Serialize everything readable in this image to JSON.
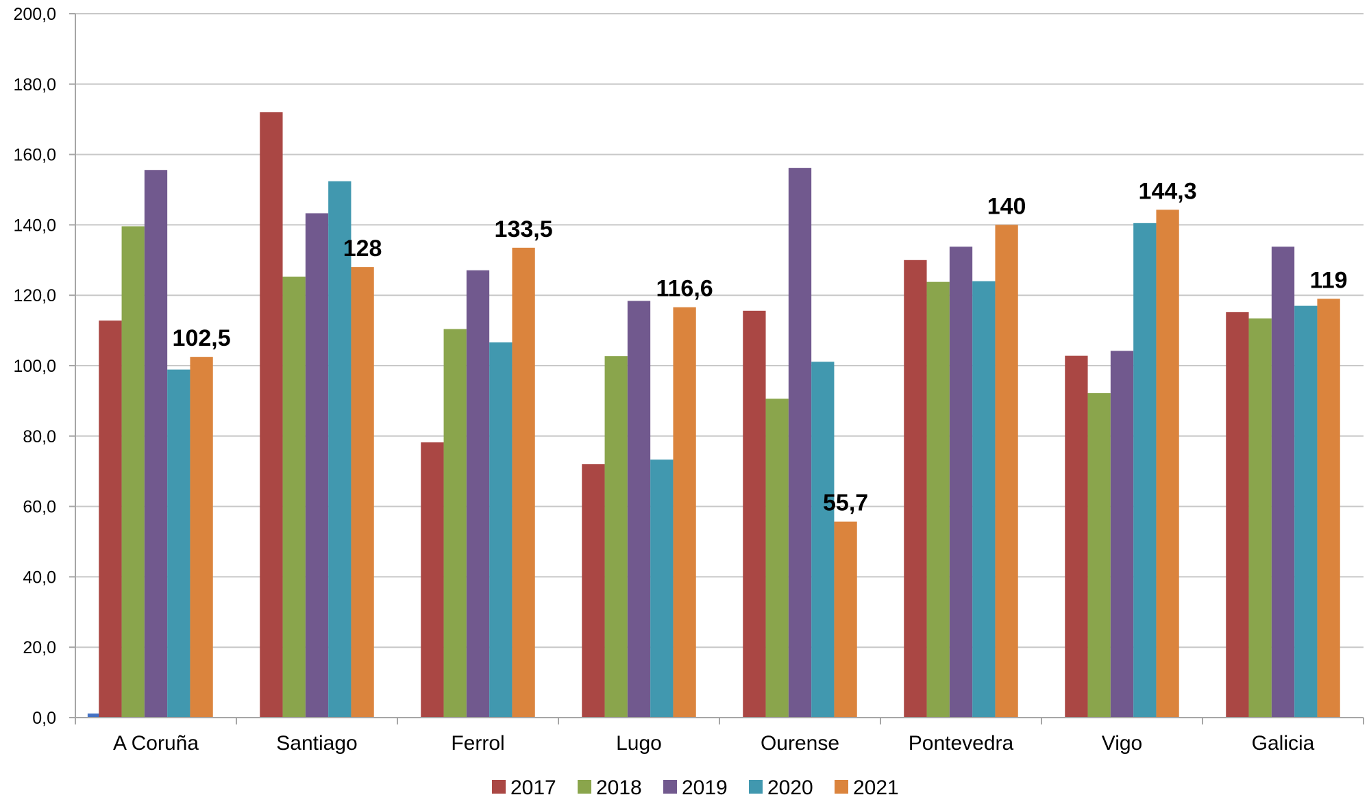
{
  "chart_data": {
    "type": "bar",
    "title": "",
    "xlabel": "",
    "ylabel": "",
    "ylim": [
      0,
      200
    ],
    "ytick_labels": [
      "0,0",
      "20,0",
      "40,0",
      "60,0",
      "80,0",
      "100,0",
      "120,0",
      "140,0",
      "160,0",
      "180,0",
      "200,0"
    ],
    "grid": true,
    "legend_position": "bottom",
    "categories": [
      "A Coruña",
      "Santiago",
      "Ferrol",
      "Lugo",
      "Ourense",
      "Pontevedra",
      "Vigo",
      "Galicia"
    ],
    "extra_bar": {
      "category": "A Coruña",
      "value": 1.2,
      "color": "#4472c4"
    },
    "series": [
      {
        "name": "2017",
        "color": "#aa4744",
        "values": [
          112.8,
          172.0,
          78.2,
          72.0,
          115.6,
          130.0,
          102.8,
          115.2
        ]
      },
      {
        "name": "2018",
        "color": "#8aa54c",
        "values": [
          139.6,
          125.3,
          110.4,
          102.7,
          90.6,
          123.8,
          92.2,
          113.4
        ]
      },
      {
        "name": "2019",
        "color": "#71598e",
        "values": [
          155.6,
          143.3,
          127.1,
          118.4,
          156.2,
          133.8,
          104.2,
          133.8
        ]
      },
      {
        "name": "2020",
        "color": "#4198af",
        "values": [
          98.9,
          152.4,
          106.6,
          73.3,
          101.1,
          124.0,
          140.5,
          117.0
        ]
      },
      {
        "name": "2021",
        "color": "#db843d",
        "values": [
          102.5,
          128.0,
          133.5,
          116.6,
          55.7,
          140.0,
          144.3,
          119.0
        ]
      }
    ],
    "data_labels": [
      "102,5",
      "128",
      "133,5",
      "116,6",
      "55,7",
      "140",
      "144,3",
      "119"
    ]
  }
}
